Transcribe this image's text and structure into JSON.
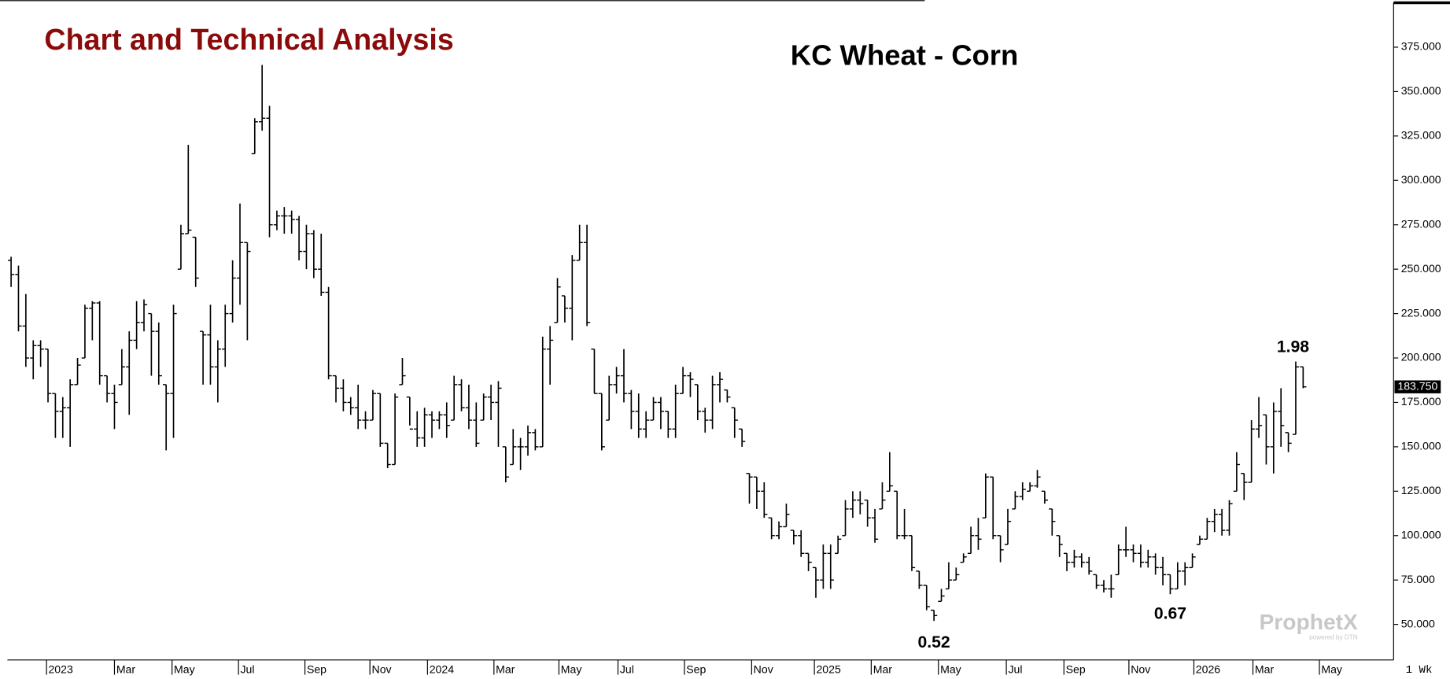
{
  "header": {
    "title": "Chart and Technical Analysis"
  },
  "chart_data": {
    "type": "ohlc",
    "title": "KC Wheat - Corn",
    "color": "#000000",
    "series": [
      {
        "open": [
          255,
          247,
          218,
          200,
          207,
          205,
          180,
          170,
          172,
          185,
          200,
          228,
          231,
          190,
          180,
          185,
          195,
          210,
          220,
          225,
          215,
          185,
          180,
          250,
          270,
          268,
          215,
          213,
          195,
          205,
          225,
          245,
          265,
          315,
          333,
          335,
          275,
          280,
          280,
          278,
          260,
          270,
          250,
          237,
          190,
          183,
          175,
          172,
          165,
          165,
          180,
          152,
          140,
          185,
          178,
          160,
          155,
          168,
          165,
          168,
          165,
          185,
          172,
          165,
          165,
          178,
          175,
          150,
          140,
          150,
          150,
          158,
          150,
          205,
          220,
          235,
          228,
          255,
          265,
          205,
          180,
          165,
          185,
          190,
          180,
          170,
          160,
          165,
          175,
          170,
          160,
          180,
          190,
          185,
          170,
          165,
          185,
          182,
          172,
          160,
          135,
          133,
          125,
          110,
          100,
          105,
          103,
          100,
          90,
          82,
          75,
          90,
          90,
          100,
          115,
          120,
          120,
          110,
          115,
          125,
          125,
          100,
          100,
          80,
          72,
          58,
          63,
          70,
          75,
          85,
          90,
          100,
          110,
          133,
          100,
          95,
          115,
          122,
          125,
          128,
          125,
          115,
          100,
          90,
          85,
          88,
          85,
          78,
          72,
          70,
          78,
          92,
          92,
          90,
          85,
          88,
          82,
          78,
          70,
          80,
          82,
          95,
          98,
          108,
          112,
          103,
          125,
          135,
          130,
          160,
          168,
          150,
          170,
          158,
          157,
          195
        ],
        "high": [
          257,
          252,
          236,
          210,
          210,
          205,
          180,
          178,
          188,
          200,
          230,
          232,
          232,
          190,
          185,
          205,
          215,
          232,
          233,
          225,
          220,
          185,
          230,
          275,
          320,
          268,
          215,
          230,
          210,
          230,
          255,
          287,
          265,
          335,
          365,
          342,
          283,
          285,
          283,
          280,
          275,
          272,
          270,
          240,
          190,
          188,
          178,
          185,
          170,
          182,
          180,
          152,
          180,
          200,
          178,
          170,
          172,
          170,
          170,
          175,
          190,
          188,
          185,
          175,
          180,
          185,
          187,
          150,
          160,
          155,
          162,
          160,
          212,
          218,
          245,
          235,
          258,
          275,
          275,
          205,
          180,
          190,
          195,
          205,
          182,
          180,
          170,
          178,
          178,
          170,
          185,
          195,
          192,
          185,
          172,
          190,
          192,
          182,
          172,
          160,
          135,
          133,
          130,
          110,
          108,
          118,
          103,
          103,
          90,
          82,
          95,
          95,
          100,
          120,
          125,
          125,
          120,
          115,
          130,
          147,
          125,
          115,
          100,
          80,
          72,
          58,
          70,
          85,
          82,
          90,
          105,
          110,
          135,
          133,
          100,
          115,
          125,
          130,
          130,
          137,
          125,
          115,
          100,
          90,
          92,
          90,
          88,
          78,
          75,
          78,
          95,
          105,
          95,
          95,
          92,
          90,
          88,
          78,
          85,
          85,
          90,
          100,
          110,
          115,
          115,
          120,
          147,
          135,
          165,
          178,
          168,
          175,
          183,
          158,
          198,
          195
        ],
        "low": [
          240,
          215,
          195,
          188,
          195,
          175,
          155,
          155,
          150,
          185,
          200,
          210,
          185,
          175,
          160,
          185,
          168,
          205,
          215,
          190,
          185,
          148,
          155,
          250,
          270,
          240,
          185,
          185,
          175,
          195,
          220,
          230,
          210,
          315,
          328,
          268,
          272,
          270,
          270,
          255,
          250,
          245,
          235,
          188,
          175,
          170,
          168,
          160,
          160,
          165,
          150,
          138,
          140,
          185,
          162,
          150,
          150,
          155,
          160,
          155,
          165,
          170,
          160,
          150,
          165,
          165,
          150,
          130,
          140,
          137,
          145,
          148,
          150,
          185,
          220,
          220,
          210,
          255,
          218,
          180,
          148,
          165,
          180,
          175,
          160,
          155,
          155,
          165,
          160,
          155,
          155,
          180,
          178,
          165,
          158,
          160,
          175,
          175,
          155,
          150,
          118,
          115,
          110,
          98,
          98,
          105,
          95,
          88,
          80,
          65,
          70,
          70,
          90,
          100,
          110,
          112,
          105,
          96,
          115,
          125,
          98,
          98,
          80,
          70,
          58,
          52,
          63,
          70,
          75,
          85,
          90,
          92,
          110,
          98,
          85,
          95,
          115,
          120,
          125,
          127,
          118,
          100,
          88,
          80,
          82,
          82,
          78,
          70,
          68,
          65,
          78,
          88,
          85,
          82,
          82,
          78,
          72,
          67,
          70,
          72,
          82,
          95,
          98,
          102,
          100,
          100,
          125,
          120,
          130,
          155,
          140,
          135,
          150,
          147,
          157,
          183
        ],
        "close": [
          247,
          218,
          200,
          207,
          205,
          180,
          170,
          172,
          185,
          196,
          228,
          231,
          190,
          180,
          175,
          195,
          210,
          220,
          230,
          215,
          190,
          180,
          225,
          270,
          272,
          245,
          213,
          195,
          205,
          225,
          245,
          265,
          260,
          333,
          335,
          275,
          280,
          280,
          278,
          260,
          270,
          250,
          237,
          190,
          183,
          175,
          172,
          165,
          165,
          180,
          152,
          140,
          178,
          190,
          160,
          155,
          168,
          165,
          168,
          162,
          185,
          172,
          165,
          152,
          178,
          175,
          183,
          133,
          150,
          150,
          158,
          150,
          205,
          210,
          240,
          228,
          255,
          265,
          220,
          180,
          150,
          185,
          190,
          180,
          170,
          160,
          165,
          175,
          170,
          160,
          180,
          190,
          188,
          170,
          165,
          185,
          188,
          178,
          165,
          153,
          133,
          125,
          112,
          100,
          105,
          112,
          100,
          90,
          85,
          75,
          90,
          75,
          98,
          115,
          120,
          118,
          110,
          98,
          120,
          128,
          100,
          100,
          82,
          72,
          60,
          55,
          66,
          75,
          78,
          88,
          100,
          98,
          133,
          100,
          92,
          108,
          122,
          126,
          128,
          133,
          120,
          108,
          95,
          85,
          88,
          85,
          80,
          72,
          70,
          70,
          92,
          92,
          90,
          85,
          88,
          82,
          78,
          70,
          80,
          82,
          88,
          98,
          108,
          112,
          103,
          118,
          140,
          130,
          160,
          162,
          150,
          170,
          162,
          152,
          195,
          183.75
        ]
      }
    ],
    "last_value_label": "183.750",
    "interval_label": "1 Wk",
    "annotations": [
      "1.98",
      "0.52",
      "0.67"
    ],
    "xlim": [
      -0.5,
      187
    ],
    "xticks": [
      {
        "value": 4.8,
        "label": "2023"
      },
      {
        "value": 14.0,
        "label": "Mar"
      },
      {
        "value": 21.8,
        "label": "May"
      },
      {
        "value": 30.8,
        "label": "Jul"
      },
      {
        "value": 39.8,
        "label": "Sep"
      },
      {
        "value": 48.6,
        "label": "Nov"
      },
      {
        "value": 56.4,
        "label": "2024"
      },
      {
        "value": 65.4,
        "label": "Mar"
      },
      {
        "value": 74.2,
        "label": "May"
      },
      {
        "value": 82.2,
        "label": "Jul"
      },
      {
        "value": 91.2,
        "label": "Sep"
      },
      {
        "value": 100.3,
        "label": "Nov"
      },
      {
        "value": 108.8,
        "label": "2025"
      },
      {
        "value": 116.5,
        "label": "Mar"
      },
      {
        "value": 125.6,
        "label": "May"
      },
      {
        "value": 134.8,
        "label": "Jul"
      },
      {
        "value": 142.6,
        "label": "Sep"
      },
      {
        "value": 151.4,
        "label": "Nov"
      },
      {
        "value": 160.2,
        "label": "2026"
      },
      {
        "value": 168.2,
        "label": "Mar"
      },
      {
        "value": 177.2,
        "label": "May"
      }
    ],
    "ylim": [
      30,
      400
    ],
    "yticks": [
      {
        "value": 50,
        "label": "50.000"
      },
      {
        "value": 75,
        "label": "75.000"
      },
      {
        "value": 100,
        "label": "100.000"
      },
      {
        "value": 125,
        "label": "125.000"
      },
      {
        "value": 150,
        "label": "150.000"
      },
      {
        "value": 175,
        "label": "175.000"
      },
      {
        "value": 200,
        "label": "200.000"
      },
      {
        "value": 225,
        "label": "225.000"
      },
      {
        "value": 250,
        "label": "250.000"
      },
      {
        "value": 275,
        "label": "275.000"
      },
      {
        "value": 300,
        "label": "300.000"
      },
      {
        "value": 325,
        "label": "325.000"
      },
      {
        "value": 350,
        "label": "350.000"
      },
      {
        "value": 375,
        "label": "375.000"
      }
    ],
    "grid": false
  },
  "logo": {
    "name": "ProphetX",
    "tagline": "powered by DTN"
  }
}
